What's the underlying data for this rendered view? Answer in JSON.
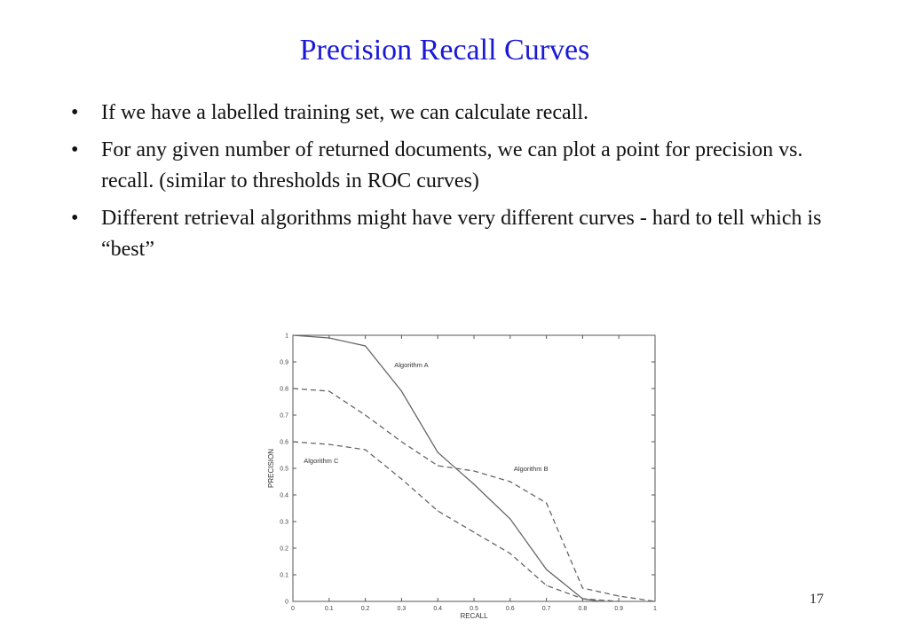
{
  "slide": {
    "title": "Precision Recall Curves",
    "bullets": [
      "If we have a labelled training set, we can calculate recall.",
      "For any given number of returned documents,  we can plot a point for precision vs. recall.  (similar to thresholds in ROC curves)",
      "Different retrieval algorithms might have very different curves - hard to tell which is “best”"
    ],
    "bullet_glyph": "•",
    "page_number": "17"
  },
  "chart_data": {
    "type": "line",
    "title": "",
    "xlabel": "RECALL",
    "ylabel": "PRECISION",
    "xlim": [
      0,
      1
    ],
    "ylim": [
      0,
      1
    ],
    "xticks": [
      "0",
      "0.1",
      "0.2",
      "0.3",
      "0.4",
      "0.5",
      "0.6",
      "0.7",
      "0.8",
      "0.9",
      "1"
    ],
    "yticks": [
      "0",
      "0.1",
      "0.2",
      "0.3",
      "0.4",
      "0.5",
      "0.6",
      "0.7",
      "0.8",
      "0.9",
      "1"
    ],
    "grid": false,
    "legend": "none",
    "annotations": [
      "Algorithm A",
      "Algorithm B",
      "Algorithm C"
    ],
    "series": [
      {
        "style": "solid",
        "x": [
          0,
          0.1,
          0.2,
          0.3,
          0.4,
          0.5,
          0.6,
          0.7,
          0.8,
          0.85
        ],
        "y": [
          1.0,
          0.99,
          0.96,
          0.79,
          0.56,
          0.44,
          0.31,
          0.12,
          0.01,
          0.0
        ]
      },
      {
        "style": "dashed",
        "x": [
          0,
          0.1,
          0.2,
          0.3,
          0.4,
          0.5,
          0.6,
          0.7,
          0.8,
          0.9,
          1.0
        ],
        "y": [
          0.8,
          0.79,
          0.7,
          0.6,
          0.51,
          0.49,
          0.45,
          0.37,
          0.05,
          0.02,
          0.0
        ]
      },
      {
        "style": "dashed",
        "x": [
          0,
          0.1,
          0.2,
          0.3,
          0.4,
          0.5,
          0.6,
          0.7,
          0.8,
          0.9
        ],
        "y": [
          0.6,
          0.59,
          0.57,
          0.46,
          0.34,
          0.26,
          0.18,
          0.06,
          0.01,
          0.0
        ]
      }
    ]
  }
}
